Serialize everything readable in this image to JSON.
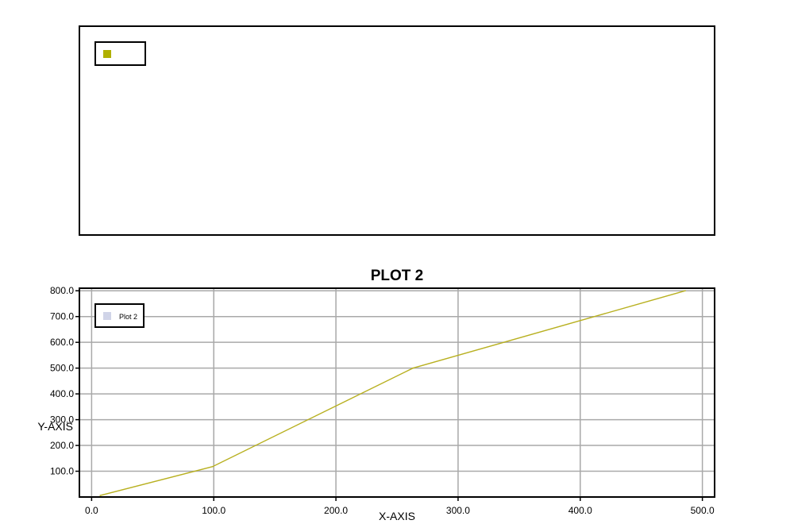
{
  "chart_data": [
    {
      "panel": "top",
      "type": "line",
      "title": "",
      "legend": {
        "position": "top-left",
        "entries": [
          {
            "name": "",
            "color": "#b0b000"
          }
        ]
      },
      "series": []
    },
    {
      "panel": "bottom",
      "type": "line",
      "title": "PLOT 2",
      "xlabel": "X-AXIS",
      "ylabel": "Y-AXIS",
      "xlim": [
        -10,
        510
      ],
      "ylim": [
        0,
        810
      ],
      "x_ticks": [
        0,
        100,
        200,
        300,
        400,
        500
      ],
      "x_tick_labels": [
        "0.0",
        "100.0",
        "200.0",
        "300.0",
        "400.0",
        "500.0"
      ],
      "y_ticks": [
        100,
        200,
        300,
        400,
        500,
        600,
        700,
        800
      ],
      "y_tick_labels": [
        "100.0",
        "200.0",
        "300.0",
        "400.0",
        "500.0",
        "600.0",
        "700.0",
        "800.0"
      ],
      "grid": true,
      "legend": {
        "position": "top-left",
        "entries": [
          {
            "name": "Plot 2",
            "color": "#d0d4e8"
          }
        ]
      },
      "series": [
        {
          "name": "Plot 2",
          "color": "#b8b020",
          "x": [
            7,
            99,
            263,
            486
          ],
          "y": [
            6,
            118,
            500,
            800
          ]
        }
      ]
    }
  ]
}
